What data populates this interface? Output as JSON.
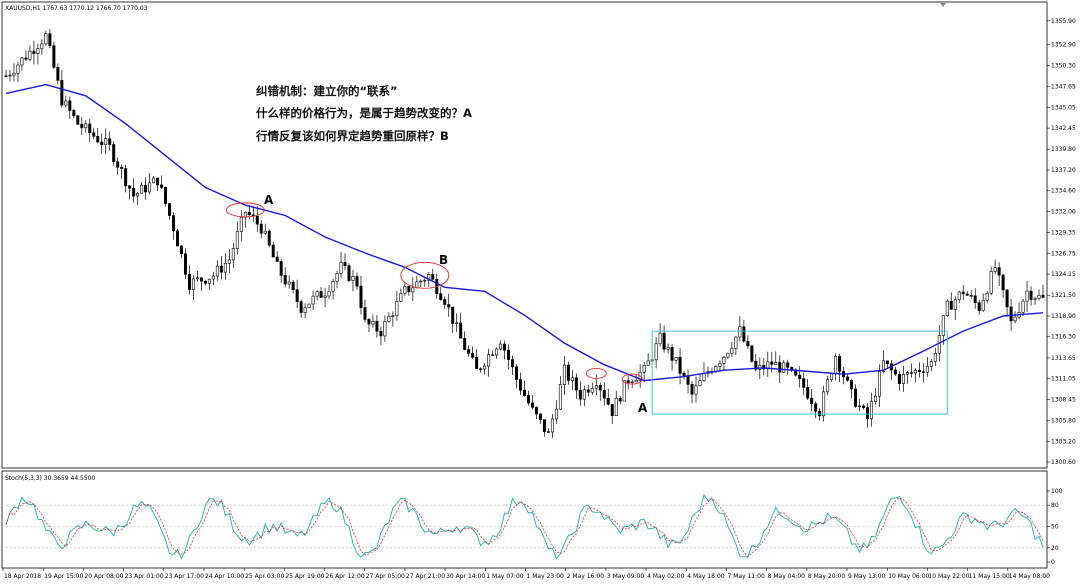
{
  "header": {
    "symbol_info": "XAUUSD,H1  1767.63 1770.12 1766.70 1770.03",
    "stoch_label": "Stoch(5,3,3) 30.3659 44.5500"
  },
  "annotations": {
    "line1": "纠错机制：建立你的“联系”",
    "line2": "什么样的价格行为，是属于趋势改变的？A",
    "line3": "行情反复该如何界定趋势重回原样？B",
    "mark_a1": "A",
    "mark_b": "B",
    "mark_a2": "A"
  },
  "colors": {
    "candle": "#000000",
    "moving_average": "#1a1adb",
    "ellipse": "#e03030",
    "range_box": "#3fc1cf",
    "stoch_main": "#22aab5",
    "stoch_signal": "#e03030"
  },
  "chart_data": [
    {
      "type": "candlestick",
      "ylim": [
        1300.6,
        1357.0
      ],
      "y_ticks": [
        "1355.90",
        "1352.90",
        "1350.30",
        "1347.65",
        "1345.05",
        "1342.45",
        "1339.80",
        "1337.20",
        "1334.60",
        "1332.00",
        "1329.35",
        "1326.75",
        "1324.15",
        "1321.50",
        "1318.90",
        "1316.30",
        "1313.65",
        "1311.05",
        "1308.45",
        "1305.80",
        "1303.20",
        "1300.60"
      ],
      "x_ticks": [
        "18 Apr 2018",
        "19 Apr 15:00",
        "20 Apr 08:00",
        "23 Apr 01:00",
        "23 Apr 17:00",
        "24 Apr 10:00",
        "25 Apr 03:00",
        "25 Apr 19:00",
        "26 Apr 12:00",
        "27 Apr 05:00",
        "27 Apr 21:00",
        "30 Apr 14:00",
        "1 May 07:00",
        "1 May 23:00",
        "2 May 16:00",
        "3 May 09:00",
        "4 May 02:00",
        "4 May 18:00",
        "7 May 11:00",
        "8 May 04:00",
        "8 May 20:00",
        "9 May 13:00",
        "10 May 06:00",
        "10 May 22:00",
        "11 May 15:00",
        "14 May 08:00"
      ],
      "series": [
        {
          "name": "moving average",
          "x_index": [
            0,
            10,
            20,
            30,
            40,
            50,
            60,
            70,
            80,
            90,
            100,
            110,
            120,
            130,
            140,
            150,
            160,
            170,
            180,
            190,
            200,
            210,
            220,
            230,
            240,
            250,
            260
          ],
          "values": [
            1346.8,
            1347.9,
            1346.5,
            1343.0,
            1339.0,
            1335.0,
            1332.8,
            1331.5,
            1328.8,
            1326.8,
            1325.0,
            1322.5,
            1322.0,
            1319.0,
            1315.5,
            1312.8,
            1310.8,
            1311.3,
            1312.1,
            1312.4,
            1312.0,
            1311.6,
            1312.1,
            1314.5,
            1317.0,
            1318.9,
            1319.3
          ]
        }
      ],
      "ellipses": [
        {
          "label": "A",
          "x_index": 60,
          "price": 1332.2
        },
        {
          "label": "B",
          "x_index": 105,
          "price": 1324.0
        },
        {
          "label": "",
          "x_index": 148,
          "price": 1311.7
        },
        {
          "label": "",
          "x_index": 157,
          "price": 1311.0
        }
      ],
      "range_box": {
        "x_index_start": 162,
        "x_index_end": 236,
        "price_top": 1317.0,
        "price_bottom": 1306.6
      }
    },
    {
      "type": "line",
      "name": "Stoch(5,3,3)",
      "ylim": [
        0,
        100
      ],
      "y_ticks": [
        "100",
        "80",
        "50",
        "20",
        "0"
      ],
      "levels": [
        80,
        50,
        20
      ]
    }
  ]
}
